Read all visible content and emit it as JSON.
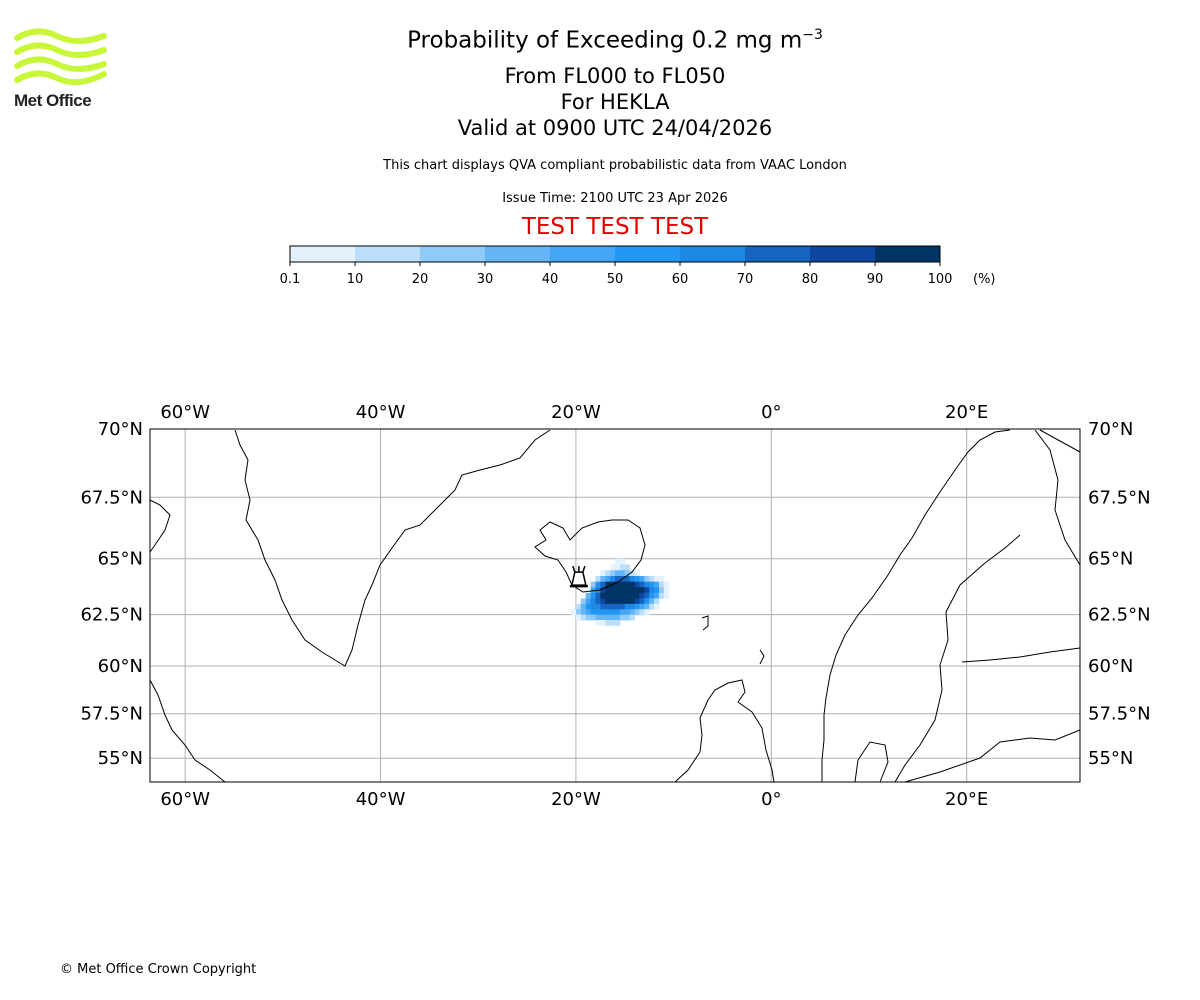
{
  "header": {
    "title_prefix": "Probability of Exceeding 0.2 mg m",
    "title_exponent": "−3",
    "levels": "From FL000 to FL050",
    "volcano": "For HEKLA",
    "valid": "Valid at 0900 UTC 24/04/2026",
    "description": "This chart displays QVA compliant probabilistic data from VAAC London",
    "issue_time": "Issue Time: 2100 UTC 23 Apr 2026",
    "test_banner": "TEST TEST TEST",
    "test_color": "#e00000"
  },
  "logo": {
    "text": "Met Office",
    "color": "#c8f73a"
  },
  "colorbar": {
    "ticks": [
      "0.1",
      "10",
      "20",
      "30",
      "40",
      "50",
      "60",
      "70",
      "80",
      "90",
      "100"
    ],
    "unit": "(%)",
    "colors": [
      "#e3f2fd",
      "#bbdefb",
      "#90caf9",
      "#64b5f6",
      "#42a5f5",
      "#2196f3",
      "#1e88e5",
      "#1565c0",
      "#0d47a1",
      "#003366"
    ]
  },
  "map": {
    "lon_labels": [
      "60°W",
      "40°W",
      "20°W",
      "0°",
      "20°E"
    ],
    "lon_values": [
      -60,
      -40,
      -20,
      0,
      20
    ],
    "lat_labels": [
      "70°N",
      "67.5°N",
      "65°N",
      "62.5°N",
      "60°N",
      "57.5°N",
      "55°N"
    ],
    "lat_values": [
      70,
      67.5,
      65,
      62.5,
      60,
      57.5,
      55
    ],
    "extent": {
      "lon_min": -63.6,
      "lon_max": 31.6,
      "lat_min": 53.5,
      "lat_max": 70
    },
    "volcano": {
      "name": "HEKLA",
      "lon": -19.7,
      "lat": 63.98
    },
    "plume_grid": {
      "lon0": -21,
      "lat0": 65,
      "dlon": 0.5,
      "dlat": 0.25,
      "note_bins": "digit = colorbar bin index, . = none",
      "rows": [
        "..........00..........",
        ".........0011.........",
        ".......01233210.......",
        "......13467776542100..",
        ".....2579999998765410.",
        ".....4689999999986520.",
        "....35799999999875410.",
        "...2467899999987531...",
        "..13566777776654310...",
        ".0234555555443210.....",
        "..012233333221........",
        "......00111..........."
      ]
    }
  },
  "footer": {
    "copyright": "© Met Office Crown Copyright"
  }
}
